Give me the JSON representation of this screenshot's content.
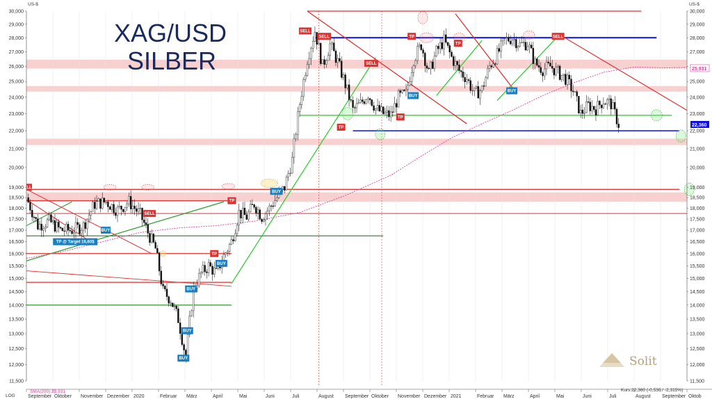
{
  "chart_data": {
    "type": "candlestick",
    "title_line1": "XAG/USD",
    "title_line2": "SILBER",
    "y_unit": "US-$",
    "scale": "LOG",
    "y_range": [
      11.5,
      30.2
    ],
    "y_ticks": [
      "30,000",
      "29,000",
      "28,000",
      "27,000",
      "26,000",
      "25,000",
      "24,000",
      "23,000",
      "22,000",
      "21,000",
      "20,000",
      "19,000",
      "18,500",
      "18,000",
      "17,500",
      "17,000",
      "16,500",
      "16,000",
      "15,500",
      "15,000",
      "14,500",
      "14,000",
      "13,500",
      "13,000",
      "12,500",
      "12,000",
      "11,500"
    ],
    "y_tick_values": [
      30,
      29,
      28,
      27,
      26,
      25,
      24,
      23,
      22,
      21,
      20,
      19,
      18.5,
      18,
      17.5,
      17,
      16.5,
      16,
      15.5,
      15,
      14.5,
      14,
      13.5,
      13,
      12.5,
      12,
      11.5
    ],
    "x_ticks": [
      "September",
      "Oktober",
      "November",
      "Dezember",
      "2020",
      "Februar",
      "März",
      "April",
      "Mai",
      "Juni",
      "Juli",
      "August",
      "September",
      "Oktober",
      "November",
      "Dezember",
      "2021",
      "Februar",
      "März",
      "April",
      "Mai",
      "Juni",
      "Juli",
      "August",
      "September",
      "Oktob"
    ],
    "current_price_label": "22,360",
    "sma_label_right": "25,931",
    "sma_legend": "SMA(200):25,931",
    "price_footer": "Kurs:22,360 (-0,530 / -2,315%)",
    "watermark": "Solit",
    "colors": {
      "candles": "#111111",
      "sell": "#e02020",
      "buy": "#1a7fc0",
      "tp": "#e02020",
      "green": "#22cc22",
      "blue": "#1010dd",
      "red": "#e03030",
      "darkgreen": "#2a9a2a",
      "sma": "#e040a0",
      "zone": "#f7c8c8"
    },
    "series": [
      {
        "name": "SMA(200)",
        "points": [
          [
            0,
            15.8
          ],
          [
            5,
            16.1
          ],
          [
            10,
            16.5
          ],
          [
            15,
            16.9
          ],
          [
            20,
            17.1
          ],
          [
            25,
            17.2
          ],
          [
            30,
            17.4
          ],
          [
            36,
            17.8
          ],
          [
            42,
            18.6
          ],
          [
            48,
            19.6
          ],
          [
            52,
            20.6
          ],
          [
            56,
            21.6
          ],
          [
            60,
            22.4
          ],
          [
            64,
            23.2
          ],
          [
            68,
            24.1
          ],
          [
            72,
            24.9
          ],
          [
            76,
            25.6
          ],
          [
            80,
            25.95
          ],
          [
            84,
            25.9
          ],
          [
            87,
            25.93
          ]
        ]
      },
      {
        "name": "Close",
        "points": [
          [
            0,
            18.5
          ],
          [
            1.5,
            17.2
          ],
          [
            3,
            17.4
          ],
          [
            4.5,
            17.0
          ],
          [
            6,
            17.0
          ],
          [
            7.5,
            17.2
          ],
          [
            9,
            18.2
          ],
          [
            10.5,
            18.3
          ],
          [
            12,
            17.9
          ],
          [
            13.5,
            18.3
          ],
          [
            15,
            17.7
          ],
          [
            16,
            16.9
          ],
          [
            17,
            16.2
          ],
          [
            18,
            14.5
          ],
          [
            19,
            14.2
          ],
          [
            20,
            13.5
          ],
          [
            21,
            12.2
          ],
          [
            22,
            14.6
          ],
          [
            23,
            15.2
          ],
          [
            24,
            15.5
          ],
          [
            25,
            15.2
          ],
          [
            26,
            15.9
          ],
          [
            27,
            16.5
          ],
          [
            28,
            17.8
          ],
          [
            29,
            17.6
          ],
          [
            30,
            18.2
          ],
          [
            31,
            17.6
          ],
          [
            32,
            18.0
          ],
          [
            33,
            18.5
          ],
          [
            34,
            19.0
          ],
          [
            35,
            20.4
          ],
          [
            36,
            23.6
          ],
          [
            37,
            26.5
          ],
          [
            38,
            28.5
          ],
          [
            39,
            26.0
          ],
          [
            40,
            27.5
          ],
          [
            41,
            26.3
          ],
          [
            42,
            24.8
          ],
          [
            43,
            23.2
          ],
          [
            44,
            23.6
          ],
          [
            45,
            24.2
          ],
          [
            46,
            23.3
          ],
          [
            47,
            23.0
          ],
          [
            48,
            22.9
          ],
          [
            49,
            24.0
          ],
          [
            50,
            24.2
          ],
          [
            51,
            26.5
          ],
          [
            52,
            27.5
          ],
          [
            53,
            25.5
          ],
          [
            54,
            27.0
          ],
          [
            55,
            27.8
          ],
          [
            56,
            26.6
          ],
          [
            57,
            25.7
          ],
          [
            58,
            25.2
          ],
          [
            59,
            24.2
          ],
          [
            60,
            24.5
          ],
          [
            61,
            26.0
          ],
          [
            62,
            26.8
          ],
          [
            63,
            27.8
          ],
          [
            64,
            28.0
          ],
          [
            65,
            27.5
          ],
          [
            66,
            27.6
          ],
          [
            67,
            26.2
          ],
          [
            68,
            25.8
          ],
          [
            69,
            26.0
          ],
          [
            70,
            25.6
          ],
          [
            71,
            25.2
          ],
          [
            72,
            24.4
          ],
          [
            73,
            23.0
          ],
          [
            74,
            23.5
          ],
          [
            75,
            23.3
          ],
          [
            76,
            23.8
          ],
          [
            77,
            23.6
          ],
          [
            78,
            22.36
          ]
        ]
      }
    ],
    "x_range": [
      0,
      87
    ]
  },
  "annotations": {
    "sell_label": "SELL",
    "buy_label": "BUY",
    "tp_label": "TP",
    "tp_target_label": "TP @ Target 16,60$",
    "partial_sell_label": "LL"
  }
}
